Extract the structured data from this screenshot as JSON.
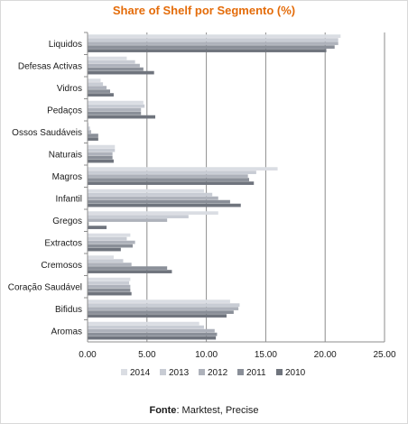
{
  "source": {
    "label": "Fonte",
    "text": ": Marktest, Precise"
  },
  "chart_data": {
    "type": "bar",
    "orientation": "horizontal",
    "title": "Share of Shelf por Segmento (%)",
    "xlabel": "",
    "ylabel": "",
    "xlim": [
      0,
      25
    ],
    "x_ticks": [
      "0.00",
      "5.00",
      "10.00",
      "15.00",
      "20.00",
      "25.00"
    ],
    "grid": "vertical major gridlines",
    "legend_position": "bottom",
    "categories": [
      "Liquidos",
      "Defesas Activas",
      "Vidros",
      "Pedaços",
      "Ossos Saudáveis",
      "Naturais",
      "Magros",
      "Infantil",
      "Gregos",
      "Extractos",
      "Cremosos",
      "Coração Saudável",
      "Bifidus",
      "Aromas"
    ],
    "series": [
      {
        "name": "2014",
        "color": "#dadde3",
        "values": [
          21.3,
          3.3,
          1.1,
          4.7,
          0.1,
          2.3,
          16.0,
          9.8,
          11.0,
          3.6,
          2.2,
          3.6,
          12.0,
          9.4
        ]
      },
      {
        "name": "2013",
        "color": "#c8ccd4",
        "values": [
          21.1,
          4.0,
          1.3,
          4.8,
          0.2,
          2.3,
          14.2,
          10.5,
          8.5,
          3.3,
          3.0,
          3.5,
          12.8,
          9.8
        ]
      },
      {
        "name": "2012",
        "color": "#aeb2bb",
        "values": [
          21.1,
          4.4,
          1.6,
          4.5,
          0.3,
          2.1,
          13.5,
          11.0,
          6.7,
          4.0,
          3.7,
          3.6,
          12.7,
          10.7
        ]
      },
      {
        "name": "2011",
        "color": "#8a8f98",
        "values": [
          20.8,
          4.7,
          1.9,
          4.5,
          0.9,
          2.1,
          13.6,
          12.0,
          0.1,
          3.8,
          6.7,
          3.6,
          12.3,
          10.9
        ]
      },
      {
        "name": "2010",
        "color": "#6f747d",
        "values": [
          20.1,
          5.6,
          2.2,
          5.7,
          0.9,
          2.2,
          14.0,
          12.9,
          1.6,
          2.8,
          7.1,
          3.7,
          11.7,
          10.8
        ]
      }
    ]
  }
}
